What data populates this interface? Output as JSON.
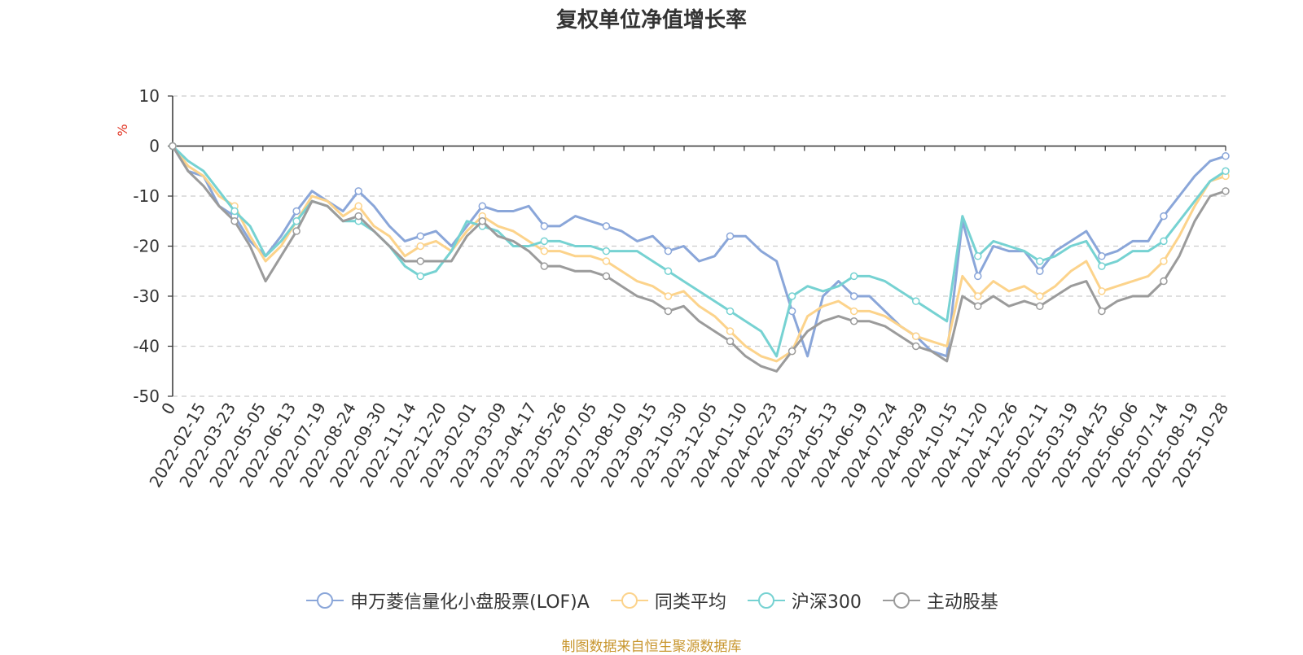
{
  "chart_data": {
    "type": "line",
    "title": "复权单位净值增长率",
    "ylabel": "%",
    "xlabel": "",
    "ylim": [
      -50,
      10
    ],
    "yticks": [
      10,
      0,
      -10,
      -20,
      -30,
      -40,
      -50
    ],
    "grid": true,
    "legend_position": "bottom",
    "x_tick_labels": [
      "0",
      "2022-02-15",
      "2022-03-23",
      "2022-05-05",
      "2022-06-13",
      "2022-07-19",
      "2022-08-24",
      "2022-09-30",
      "2022-11-14",
      "2022-12-20",
      "2023-02-01",
      "2023-03-09",
      "2023-04-17",
      "2023-05-26",
      "2023-07-05",
      "2023-08-10",
      "2023-09-15",
      "2023-10-30",
      "2023-12-05",
      "2024-01-10",
      "2024-02-23",
      "2024-03-31",
      "2024-05-13",
      "2024-06-19",
      "2024-07-24",
      "2024-08-29",
      "2024-10-15",
      "2024-11-20",
      "2024-12-26",
      "2025-02-11",
      "2025-03-19",
      "2025-04-25",
      "2025-06-06",
      "2025-07-14",
      "2025-08-19",
      "2025-10-28"
    ],
    "series": [
      {
        "name": "申万菱信量化小盘股票(LOF)A",
        "color": "#8aa6d9",
        "values": [
          0,
          -5,
          -6,
          -12,
          -14,
          -19,
          -22,
          -18,
          -13,
          -9,
          -11,
          -13,
          -9,
          -12,
          -16,
          -19,
          -18,
          -17,
          -20,
          -16,
          -12,
          -13,
          -13,
          -12,
          -16,
          -16,
          -14,
          -15,
          -16,
          -17,
          -19,
          -18,
          -21,
          -20,
          -23,
          -22,
          -18,
          -18,
          -21,
          -23,
          -33,
          -42,
          -30,
          -27,
          -30,
          -30,
          -33,
          -36,
          -38,
          -41,
          -42,
          -15,
          -26,
          -20,
          -21,
          -21,
          -25,
          -21,
          -19,
          -17,
          -22,
          -21,
          -19,
          -19,
          -14,
          -10,
          -6,
          -3,
          -2
        ]
      },
      {
        "name": "同类平均",
        "color": "#fcd38b",
        "values": [
          0,
          -4,
          -6,
          -10,
          -12,
          -18,
          -23,
          -20,
          -15,
          -10,
          -11,
          -14,
          -12,
          -16,
          -18,
          -22,
          -20,
          -19,
          -21,
          -17,
          -14,
          -16,
          -17,
          -19,
          -21,
          -21,
          -22,
          -22,
          -23,
          -25,
          -27,
          -28,
          -30,
          -29,
          -32,
          -34,
          -37,
          -40,
          -42,
          -43,
          -41,
          -34,
          -32,
          -31,
          -33,
          -33,
          -34,
          -36,
          -38,
          -39,
          -40,
          -26,
          -30,
          -27,
          -29,
          -28,
          -30,
          -28,
          -25,
          -23,
          -29,
          -28,
          -27,
          -26,
          -23,
          -18,
          -12,
          -7,
          -6
        ]
      },
      {
        "name": "沪深300",
        "color": "#76d2d2",
        "values": [
          0,
          -3,
          -5,
          -9,
          -13,
          -16,
          -22,
          -19,
          -15,
          -11,
          -12,
          -15,
          -15,
          -17,
          -20,
          -24,
          -26,
          -25,
          -21,
          -15,
          -16,
          -17,
          -20,
          -20,
          -19,
          -19,
          -20,
          -20,
          -21,
          -21,
          -21,
          -23,
          -25,
          -27,
          -29,
          -31,
          -33,
          -35,
          -37,
          -42,
          -30,
          -28,
          -29,
          -28,
          -26,
          -26,
          -27,
          -29,
          -31,
          -33,
          -35,
          -14,
          -22,
          -19,
          -20,
          -21,
          -23,
          -22,
          -20,
          -19,
          -24,
          -23,
          -21,
          -21,
          -19,
          -15,
          -11,
          -7,
          -5
        ]
      },
      {
        "name": "主动股基",
        "color": "#9b9b9b",
        "values": [
          0,
          -5,
          -8,
          -12,
          -15,
          -20,
          -27,
          -22,
          -17,
          -11,
          -12,
          -15,
          -14,
          -17,
          -20,
          -23,
          -23,
          -23,
          -23,
          -18,
          -15,
          -18,
          -19,
          -21,
          -24,
          -24,
          -25,
          -25,
          -26,
          -28,
          -30,
          -31,
          -33,
          -32,
          -35,
          -37,
          -39,
          -42,
          -44,
          -45,
          -41,
          -37,
          -35,
          -34,
          -35,
          -35,
          -36,
          -38,
          -40,
          -41,
          -43,
          -30,
          -32,
          -30,
          -32,
          -31,
          -32,
          -30,
          -28,
          -27,
          -33,
          -31,
          -30,
          -30,
          -27,
          -22,
          -15,
          -10,
          -9
        ]
      }
    ]
  },
  "source_note": "制图数据来自恒生聚源数据库"
}
